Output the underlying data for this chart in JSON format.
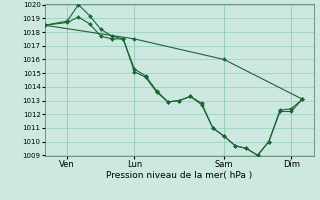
{
  "bg_color": "#cce8e0",
  "grid_color": "#99ccbb",
  "line_color": "#1a6633",
  "marker_color": "#1a6633",
  "xlabel": "Pression niveau de la mer( hPa )",
  "ylim": [
    1009,
    1020
  ],
  "yticks": [
    1009,
    1010,
    1011,
    1012,
    1013,
    1014,
    1015,
    1016,
    1017,
    1018,
    1019,
    1020
  ],
  "xtick_labels": [
    "Ven",
    "Lun",
    "Sam",
    "Dim"
  ],
  "xtick_positions": [
    1,
    4,
    8,
    11
  ],
  "xvlines": [
    1,
    4,
    8,
    11
  ],
  "xlim": [
    0,
    12
  ],
  "line1_x": [
    0,
    1,
    1.5,
    2,
    2.5,
    3,
    3.5,
    4,
    4.5,
    5,
    5.5,
    6,
    6.5,
    7,
    7.5,
    8,
    8.5,
    9,
    9.5,
    10,
    10.5,
    11,
    11.5
  ],
  "line1_y": [
    1018.5,
    1018.8,
    1020.0,
    1019.2,
    1018.2,
    1017.7,
    1017.5,
    1015.3,
    1014.8,
    1013.7,
    1012.9,
    1013.0,
    1013.3,
    1012.8,
    1011.0,
    1010.4,
    1009.7,
    1009.5,
    1009.0,
    1010.0,
    1012.3,
    1012.4,
    1013.1
  ],
  "line2_x": [
    0,
    1,
    1.5,
    2,
    2.5,
    3,
    3.5,
    4,
    4.5,
    5,
    5.5,
    6,
    6.5,
    7,
    7.5,
    8,
    8.5,
    9,
    9.5,
    10,
    10.5,
    11,
    11.5
  ],
  "line2_y": [
    1018.5,
    1018.7,
    1019.1,
    1018.6,
    1017.7,
    1017.5,
    1017.5,
    1015.1,
    1014.7,
    1013.6,
    1012.9,
    1013.0,
    1013.3,
    1012.7,
    1011.0,
    1010.4,
    1009.7,
    1009.5,
    1009.0,
    1010.0,
    1012.2,
    1012.2,
    1013.1
  ],
  "line3_x": [
    0,
    4,
    8,
    11.5
  ],
  "line3_y": [
    1018.5,
    1017.5,
    1016.0,
    1013.1
  ],
  "ytick_fontsize": 5,
  "xtick_fontsize": 6,
  "xlabel_fontsize": 6.5
}
